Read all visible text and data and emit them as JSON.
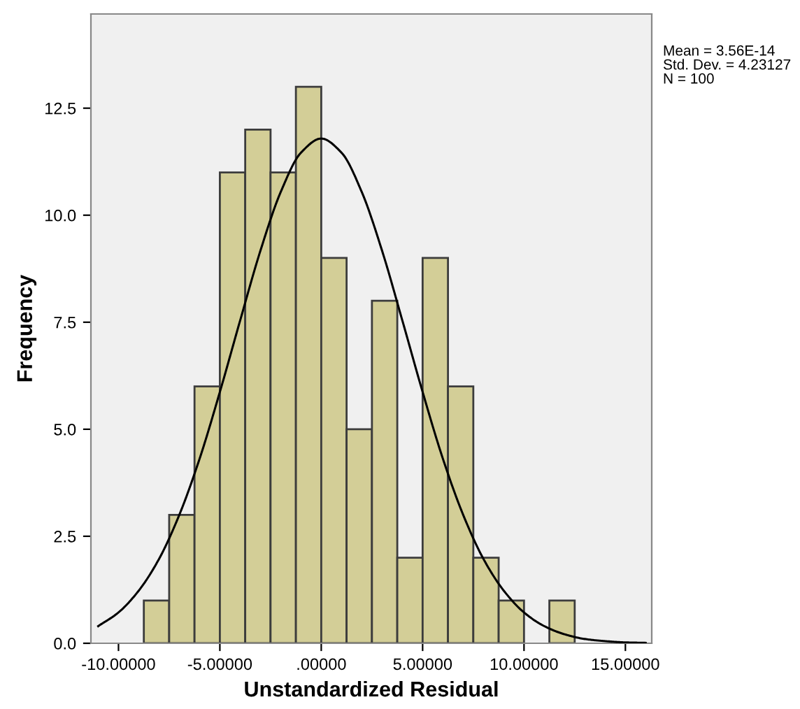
{
  "chart_data": {
    "type": "histogram",
    "bins": [
      -8.75,
      -7.5,
      -6.25,
      -5,
      -3.75,
      -2.5,
      -1.25,
      0,
      1.25,
      2.5,
      3.75,
      5,
      6.25,
      7.5,
      8.75,
      10,
      11.25,
      12.5
    ],
    "values": [
      1,
      3,
      6,
      11,
      12,
      11,
      13,
      9,
      5,
      8,
      2,
      9,
      6,
      2,
      1,
      0,
      1
    ],
    "color": "#d3ce97",
    "series": [
      {
        "type": "line",
        "color": "#000000",
        "x": [
          -11,
          -10,
          -9,
          -8,
          -7,
          -6,
          -5,
          -4,
          -3,
          -2,
          -1,
          0,
          1,
          2,
          3,
          4,
          5,
          6,
          7,
          8,
          9,
          10,
          11,
          12,
          13,
          14,
          15,
          16
        ],
        "values": [
          0.4,
          0.72,
          1.23,
          1.97,
          3.0,
          4.31,
          5.87,
          7.54,
          9.17,
          10.54,
          11.46,
          11.79,
          11.46,
          10.54,
          9.17,
          7.54,
          5.87,
          4.31,
          3.0,
          1.97,
          1.23,
          0.72,
          0.4,
          0.21,
          0.1,
          0.05,
          0.02,
          0.01
        ]
      }
    ],
    "xlabel": "Unstandardized Residual",
    "ylabel": "Frequency",
    "xlim": [
      -11.36,
      16.3
    ],
    "ylim": [
      0,
      14.7
    ],
    "xticks": [
      {
        "value": -10,
        "label": "-10.00000"
      },
      {
        "value": -5,
        "label": "-5.00000"
      },
      {
        "value": 0,
        "label": ".00000"
      },
      {
        "value": 5,
        "label": "5.00000"
      },
      {
        "value": 10,
        "label": "10.00000"
      },
      {
        "value": 15,
        "label": "15.00000"
      }
    ],
    "yticks": [
      {
        "value": 0,
        "label": "0.0"
      },
      {
        "value": 2.5,
        "label": "2.5"
      },
      {
        "value": 5,
        "label": "5.0"
      },
      {
        "value": 7.5,
        "label": "7.5"
      },
      {
        "value": 10,
        "label": "10.0"
      },
      {
        "value": 12.5,
        "label": "12.5"
      }
    ],
    "annotations": [
      "Mean = 3.56E-14",
      "Std. Dev. = 4.23127",
      "N = 100"
    ],
    "grid": false
  }
}
